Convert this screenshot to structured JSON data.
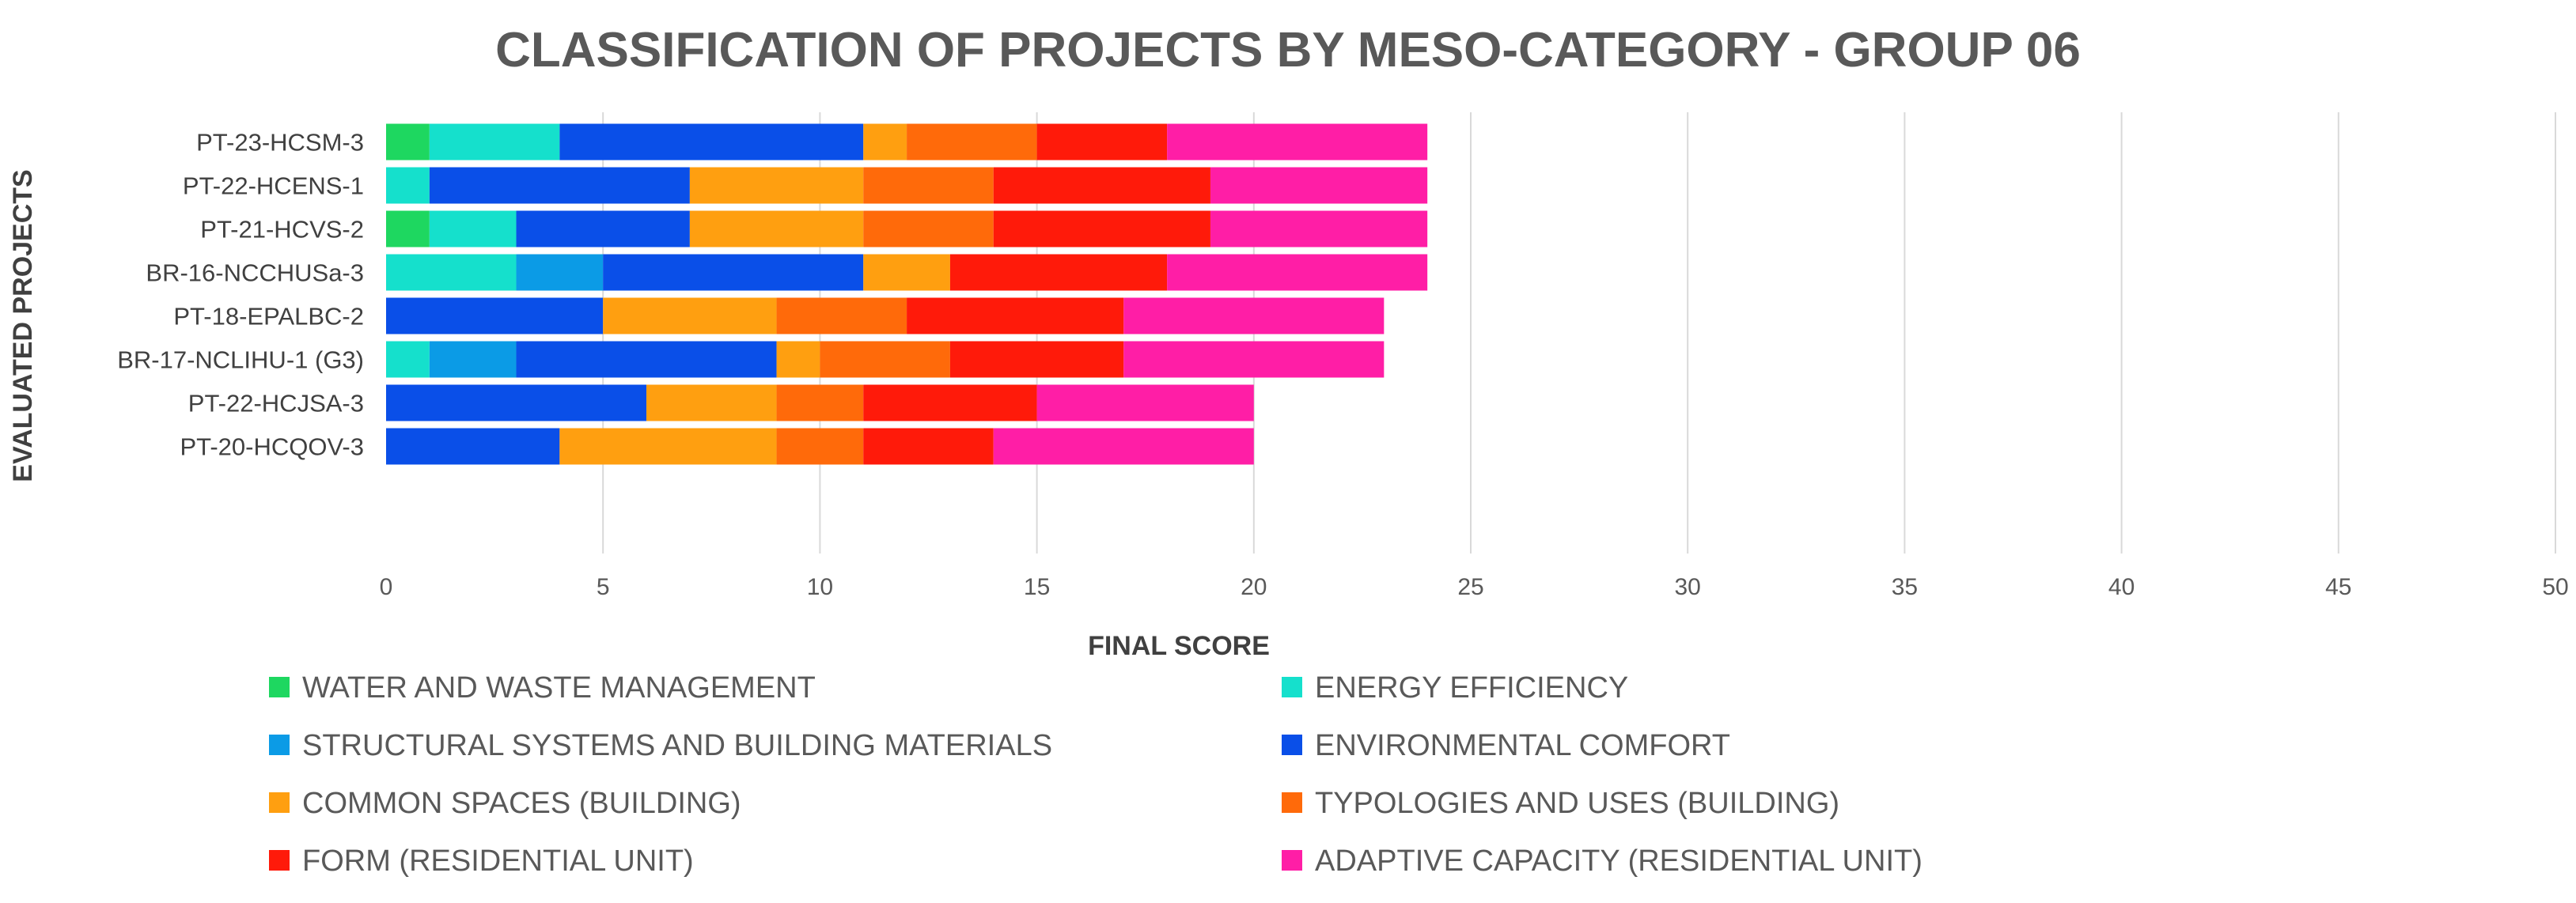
{
  "chart_data": {
    "type": "bar",
    "orientation": "horizontal",
    "stacked": true,
    "title": "CLASSIFICATION OF PROJECTS BY MESO-CATEGORY - GROUP 06",
    "xlabel": "FINAL SCORE",
    "ylabel": "EVALUATED PROJECTS",
    "xlim": [
      0,
      50
    ],
    "xticks": [
      0,
      5,
      10,
      15,
      20,
      25,
      30,
      35,
      40,
      45,
      50
    ],
    "grid": true,
    "legend_position": "bottom",
    "categories": [
      "PT-23-HCSM-3",
      "PT-22-HCENS-1",
      "PT-21-HCVS-2",
      "BR-16-NCCHUSa-3",
      "PT-18-EPALBC-2",
      "BR-17-NCLIHU-1 (G3)",
      "PT-22-HCJSA-3",
      "PT-20-HCQOV-3"
    ],
    "series": [
      {
        "name": "WATER AND WASTE MANAGEMENT",
        "color": "#1ed760",
        "values": [
          1,
          0,
          1,
          0,
          0,
          0,
          0,
          0
        ]
      },
      {
        "name": "ENERGY EFFICIENCY",
        "color": "#15e0cc",
        "values": [
          3,
          1,
          2,
          3,
          0,
          1,
          0,
          0
        ]
      },
      {
        "name": "STRUCTURAL SYSTEMS AND BUILDING MATERIALS",
        "color": "#0b9be6",
        "values": [
          0,
          0,
          0,
          2,
          0,
          2,
          0,
          0
        ]
      },
      {
        "name": "ENVIRONMENTAL COMFORT",
        "color": "#0a4fe8",
        "values": [
          7,
          6,
          4,
          6,
          5,
          6,
          6,
          4
        ]
      },
      {
        "name": "COMMON SPACES (BUILDING)",
        "color": "#ff9f10",
        "values": [
          1,
          4,
          4,
          2,
          4,
          1,
          3,
          5
        ]
      },
      {
        "name": "TYPOLOGIES AND USES (BUILDING)",
        "color": "#ff6a0a",
        "values": [
          3,
          3,
          3,
          0,
          3,
          3,
          2,
          2
        ]
      },
      {
        "name": "FORM (RESIDENTIAL UNIT)",
        "color": "#ff1a0a",
        "values": [
          3,
          5,
          5,
          5,
          5,
          4,
          4,
          3
        ]
      },
      {
        "name": "ADAPTIVE CAPACITY (RESIDENTIAL UNIT)",
        "color": "#ff1ea6",
        "values": [
          6,
          5,
          5,
          6,
          6,
          6,
          5,
          6
        ]
      }
    ]
  }
}
